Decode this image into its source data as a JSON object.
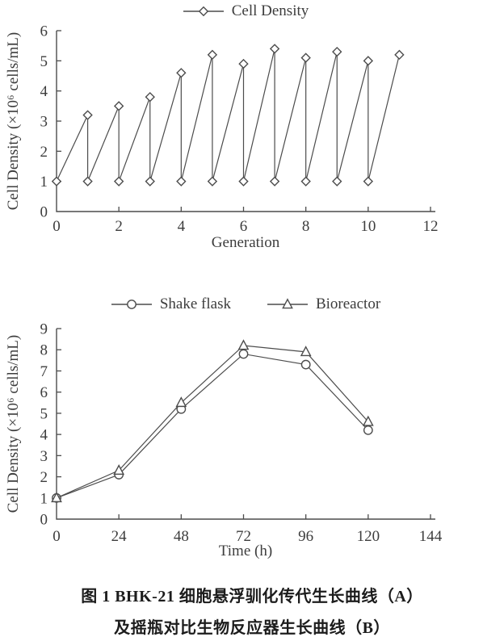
{
  "colors": {
    "line": "#4c4c4c",
    "axis": "#4c4c4c",
    "text": "#3d3d3d",
    "marker_fill": "#ffffff"
  },
  "chart_data": [
    {
      "id": "passage-curve",
      "type": "line",
      "panel": "A",
      "legend": [
        {
          "label": "Cell Density",
          "marker": "diamond"
        }
      ],
      "xlabel": "Generation",
      "ylabel": "Cell Density (×10⁶ cells/mL)",
      "xlim": [
        0,
        12
      ],
      "ylim": [
        0,
        6
      ],
      "xticks": [
        0,
        2,
        4,
        6,
        8,
        10,
        12
      ],
      "yticks": [
        0,
        1,
        2,
        3,
        4,
        5,
        6
      ],
      "grid": false,
      "legend_position": "top-center",
      "series": [
        {
          "name": "Cell Density",
          "marker": "diamond",
          "points": [
            [
              0,
              1
            ],
            [
              1,
              3.2
            ],
            [
              1,
              1
            ],
            [
              2,
              3.5
            ],
            [
              2,
              1
            ],
            [
              3,
              3.8
            ],
            [
              3,
              1
            ],
            [
              4,
              4.6
            ],
            [
              4,
              1
            ],
            [
              5,
              5.2
            ],
            [
              5,
              1
            ],
            [
              6,
              4.9
            ],
            [
              6,
              1
            ],
            [
              7,
              5.4
            ],
            [
              7,
              1
            ],
            [
              8,
              5.1
            ],
            [
              8,
              1
            ],
            [
              9,
              5.3
            ],
            [
              9,
              1
            ],
            [
              10,
              5.0
            ],
            [
              10,
              1
            ],
            [
              11,
              5.2
            ]
          ]
        }
      ]
    },
    {
      "id": "growth-curve",
      "type": "line",
      "panel": "B",
      "legend": [
        {
          "label": "Shake flask",
          "marker": "circle"
        },
        {
          "label": "Bioreactor",
          "marker": "triangle"
        }
      ],
      "xlabel": "Time (h)",
      "ylabel": "Cell Density (×10⁶ cells/mL)",
      "xlim": [
        0,
        144
      ],
      "ylim": [
        0,
        9
      ],
      "xticks": [
        0,
        24,
        48,
        72,
        96,
        120,
        144
      ],
      "yticks": [
        0,
        1,
        2,
        3,
        4,
        5,
        6,
        7,
        8,
        9
      ],
      "grid": false,
      "legend_position": "top-center",
      "x": [
        0,
        24,
        48,
        72,
        96,
        120
      ],
      "series": [
        {
          "name": "Shake flask",
          "marker": "circle",
          "values": [
            1.0,
            2.1,
            5.2,
            7.8,
            7.3,
            4.2
          ]
        },
        {
          "name": "Bioreactor",
          "marker": "triangle",
          "values": [
            1.0,
            2.3,
            5.5,
            8.2,
            7.9,
            4.6
          ]
        }
      ]
    }
  ],
  "caption": {
    "line1": "图 1  BHK-21 细胞悬浮驯化传代生长曲线（A）",
    "line2": "及摇瓶对比生物反应器生长曲线（B）"
  }
}
